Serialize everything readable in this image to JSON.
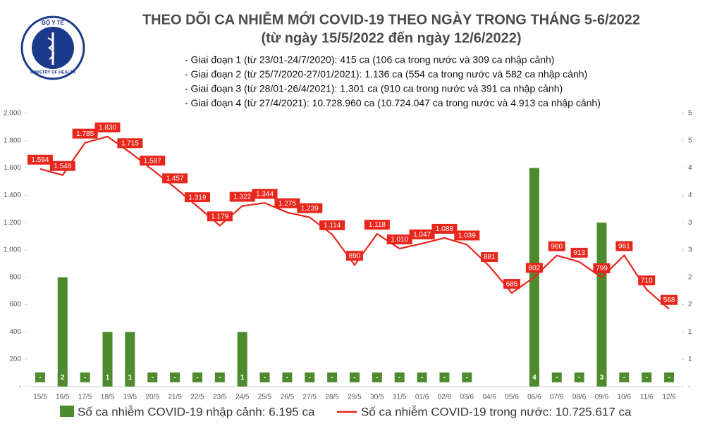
{
  "logo": {
    "top": "BỘ Y TẾ",
    "bottom": "MINISTRY OF HEALTH"
  },
  "chart_data": {
    "type": "combo",
    "title": "THEO DÕI CA NHIỄM MỚI COVID-19 THEO NGÀY TRONG THÁNG 5-6/2022",
    "subtitle": "(từ ngày 15/5/2022 đến ngày 12/6/2022)",
    "annotations": [
      "- Giai đoạn 1 (từ 23/01-24/7/2020): 415 ca (106 ca trong nước và 309 ca nhập cảnh)",
      "- Giai đoạn 2 (từ 25/7/2020-27/01/2021): 1.136 ca (554 ca trong nước và 582 ca nhập cảnh)",
      "- Giai đoạn 3 (từ 28/01-26/4/2021): 1.301 ca (910 ca trong nước và 391 ca nhập cảnh)",
      "- Giai đoạn 4 (từ 27/4/2021): 10.728.960 ca (10.724.047 ca trong nước và 4.913 ca nhập cảnh)"
    ],
    "categories": [
      "15/5",
      "16/5",
      "17/5",
      "18/5",
      "19/5",
      "20/5",
      "21/5",
      "22/5",
      "23/5",
      "24/5",
      "25/5",
      "26/5",
      "27/5",
      "28/5",
      "29/5",
      "30/5",
      "31/5",
      "01/6",
      "02/6",
      "03/6",
      "04/6",
      "05/6",
      "06/6",
      "07/6",
      "08/6",
      "09/6",
      "10/6",
      "11/6",
      "12/6"
    ],
    "series": [
      {
        "name": "Số ca nhiễm COVID-19 nhập cảnh: 6.195 ca",
        "type": "bar",
        "axis": "y2",
        "color": "#4e8a2e",
        "values": [
          0,
          2,
          0,
          1,
          1,
          0,
          0,
          0,
          0,
          1,
          0,
          0,
          0,
          0,
          0,
          0,
          0,
          0,
          0,
          0,
          null,
          null,
          4,
          0,
          0,
          3,
          0,
          0,
          0
        ],
        "value_labels": [
          "-",
          "2",
          "-",
          "1",
          "1",
          "-",
          "-",
          "-",
          "-",
          "1",
          "-",
          "-",
          "-",
          "-",
          "-",
          "-",
          "-",
          "-",
          "-",
          "-",
          null,
          null,
          "4",
          "-",
          "-",
          "3",
          "-",
          "-",
          "-"
        ]
      },
      {
        "name": "Số ca nhiễm COVID-19 trong nước: 10.725.617 ca",
        "type": "line",
        "color": "#e8261c",
        "values": [
          1594,
          1548,
          1785,
          1830,
          1715,
          1587,
          1457,
          1319,
          1179,
          1322,
          1344,
          1275,
          1239,
          1114,
          890,
          1118,
          1010,
          1047,
          1088,
          1039,
          881,
          685,
          802,
          960,
          913,
          799,
          961,
          710,
          568
        ],
        "value_labels": [
          "1.594",
          "1.548",
          "1.785",
          "1.830",
          "1.715",
          "1.587",
          "1.457",
          "1.319",
          "1.179",
          "1.322",
          "1.344",
          "1.275",
          "1.239",
          "1.114",
          "890",
          "1.118",
          "1.010",
          "1.047",
          "1.088",
          "1.039",
          "881",
          "685",
          "802",
          "960",
          "913",
          "799",
          "961",
          "710",
          "568"
        ]
      }
    ],
    "ylim": [
      0,
      2000
    ],
    "yticks": [
      {
        "value": 0,
        "label": "-"
      },
      200,
      400,
      600,
      800,
      {
        "value": 1000,
        "label": "1.000"
      },
      {
        "value": 1200,
        "label": "1.200"
      },
      {
        "value": 1400,
        "label": "1.400"
      },
      {
        "value": 1600,
        "label": "1.600"
      },
      {
        "value": 1800,
        "label": "1.800"
      },
      {
        "value": 2000,
        "label": "2.000"
      }
    ],
    "y2lim": [
      0,
      5
    ],
    "y2ticks": [
      {
        "value": 0,
        "label": "-"
      },
      {
        "value": 0.5,
        "label": "1"
      },
      1,
      {
        "value": 1.5,
        "label": "2"
      },
      2,
      {
        "value": 2.5,
        "label": "3"
      },
      3,
      {
        "value": 3.5,
        "label": "4"
      },
      4,
      {
        "value": 4.5,
        "label": "5"
      },
      5
    ],
    "grid": false
  }
}
